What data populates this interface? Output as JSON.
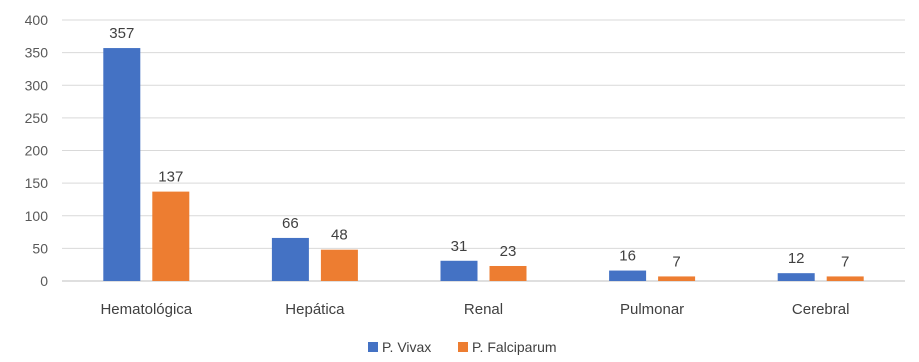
{
  "chart_data": {
    "type": "bar",
    "title": "",
    "xlabel": "",
    "ylabel": "",
    "categories": [
      "Hematológica",
      "Hepática",
      "Renal",
      "Pulmonar",
      "Cerebral"
    ],
    "series": [
      {
        "name": "P. Vivax",
        "values": [
          357,
          66,
          31,
          16,
          12
        ],
        "color": "#4472C4"
      },
      {
        "name": "P. Falciparum",
        "values": [
          137,
          48,
          23,
          7,
          7
        ],
        "color": "#ED7D31"
      }
    ],
    "ylim": [
      0,
      400
    ],
    "yticks": [
      0,
      50,
      100,
      150,
      200,
      250,
      300,
      350,
      400
    ],
    "grid": true,
    "legend": "bottom-center",
    "data_labels": true
  }
}
